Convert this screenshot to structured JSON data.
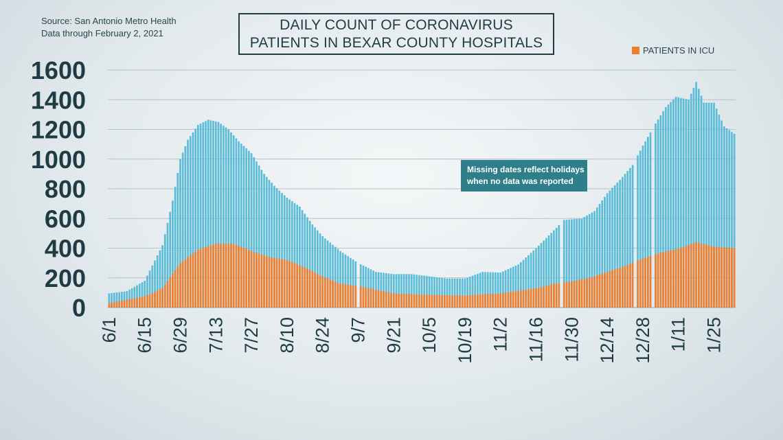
{
  "source": {
    "line1": "Source: San Antonio Metro Health",
    "line2": "Data through February 2, 2021"
  },
  "title": {
    "line1": "DAILY COUNT OF CORONAVIRUS",
    "line2": "PATIENTS IN BEXAR COUNTY HOSPITALS"
  },
  "annotation": {
    "line1": "Missing dates reflect holidays",
    "line2": "when no data was reported"
  },
  "colors": {
    "total": "#5bbcd8",
    "icu": "#ef7f2f",
    "grid": "#b6c2c7",
    "text": "#1f3c44"
  },
  "chart_data": {
    "type": "bar",
    "stacked": true,
    "series": [
      {
        "name": "",
        "role": "total_hospitalized"
      },
      {
        "name": "PATIENTS IN ICU",
        "role": "icu"
      }
    ],
    "ylim": [
      0,
      1600
    ],
    "yticks": [
      0,
      200,
      400,
      600,
      800,
      1000,
      1200,
      1400,
      1600
    ],
    "xticks": [
      "6/1",
      "6/15",
      "6/29",
      "7/13",
      "7/27",
      "8/10",
      "8/24",
      "9/7",
      "9/21",
      "10/5",
      "10/19",
      "11/2",
      "11/16",
      "11/30",
      "12/14",
      "12/28",
      "1/11",
      "1/25"
    ],
    "start_date": "6/1",
    "missing_dates": [
      "9/7",
      "11/26",
      "12/25",
      "1/1"
    ],
    "total_keypoints": [
      [
        "6/1",
        95
      ],
      [
        "6/8",
        110
      ],
      [
        "6/15",
        180
      ],
      [
        "6/22",
        420
      ],
      [
        "6/26",
        720
      ],
      [
        "6/29",
        1000
      ],
      [
        "7/2",
        1130
      ],
      [
        "7/6",
        1230
      ],
      [
        "7/10",
        1265
      ],
      [
        "7/14",
        1250
      ],
      [
        "7/18",
        1200
      ],
      [
        "7/22",
        1120
      ],
      [
        "7/27",
        1040
      ],
      [
        "8/1",
        900
      ],
      [
        "8/5",
        820
      ],
      [
        "8/10",
        740
      ],
      [
        "8/15",
        680
      ],
      [
        "8/20",
        560
      ],
      [
        "8/24",
        480
      ],
      [
        "8/31",
        380
      ],
      [
        "9/7",
        300
      ],
      [
        "9/14",
        240
      ],
      [
        "9/21",
        225
      ],
      [
        "9/28",
        225
      ],
      [
        "10/5",
        210
      ],
      [
        "10/12",
        195
      ],
      [
        "10/19",
        195
      ],
      [
        "10/26",
        240
      ],
      [
        "11/2",
        235
      ],
      [
        "11/9",
        290
      ],
      [
        "11/16",
        400
      ],
      [
        "11/23",
        520
      ],
      [
        "11/27",
        590
      ],
      [
        "12/4",
        600
      ],
      [
        "12/9",
        650
      ],
      [
        "12/14",
        770
      ],
      [
        "12/19",
        860
      ],
      [
        "12/24",
        960
      ],
      [
        "12/28",
        1090
      ],
      [
        "1/2",
        1240
      ],
      [
        "1/6",
        1350
      ],
      [
        "1/10",
        1420
      ],
      [
        "1/15",
        1400
      ],
      [
        "1/18",
        1520
      ],
      [
        "1/21",
        1380
      ],
      [
        "1/25",
        1380
      ],
      [
        "1/29",
        1220
      ],
      [
        "2/2",
        1170
      ]
    ],
    "icu_keypoints": [
      [
        "6/1",
        30
      ],
      [
        "6/15",
        75
      ],
      [
        "6/22",
        130
      ],
      [
        "6/29",
        300
      ],
      [
        "7/6",
        390
      ],
      [
        "7/13",
        430
      ],
      [
        "7/20",
        430
      ],
      [
        "7/27",
        380
      ],
      [
        "8/3",
        340
      ],
      [
        "8/10",
        320
      ],
      [
        "8/17",
        270
      ],
      [
        "8/24",
        210
      ],
      [
        "8/31",
        160
      ],
      [
        "9/7",
        145
      ],
      [
        "9/21",
        95
      ],
      [
        "10/5",
        85
      ],
      [
        "10/19",
        80
      ],
      [
        "10/26",
        90
      ],
      [
        "11/2",
        95
      ],
      [
        "11/16",
        130
      ],
      [
        "11/23",
        160
      ],
      [
        "11/30",
        175
      ],
      [
        "12/7",
        200
      ],
      [
        "12/14",
        240
      ],
      [
        "12/21",
        280
      ],
      [
        "12/28",
        330
      ],
      [
        "1/4",
        370
      ],
      [
        "1/11",
        395
      ],
      [
        "1/18",
        440
      ],
      [
        "1/25",
        410
      ],
      [
        "2/2",
        400
      ]
    ]
  }
}
